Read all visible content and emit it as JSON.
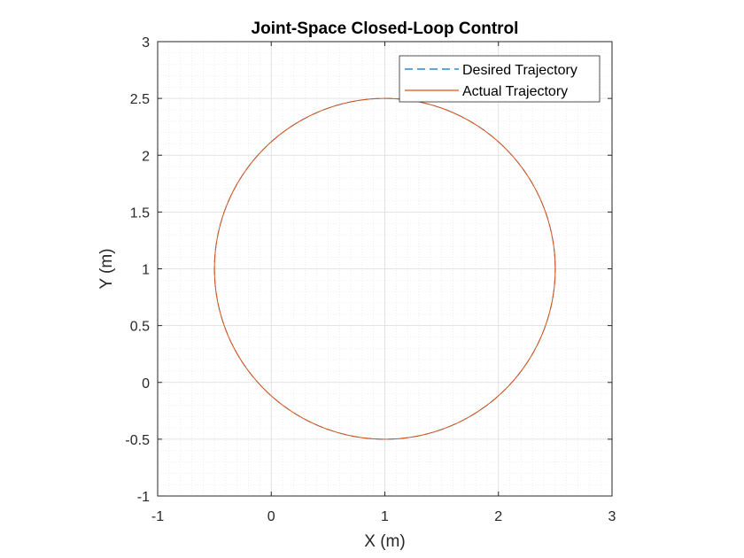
{
  "chart_data": {
    "type": "line",
    "title": "Joint-Space Closed-Loop Control",
    "xlabel": "X (m)",
    "ylabel": "Y (m)",
    "xlim": [
      -1,
      3
    ],
    "ylim": [
      -1,
      3
    ],
    "xticks": [
      "-1",
      "0",
      "1",
      "2",
      "3"
    ],
    "yticks": [
      "-1",
      "-0.5",
      "0",
      "0.5",
      "1",
      "1.5",
      "2",
      "2.5",
      "3"
    ],
    "grid": true,
    "minor_grid": true,
    "legend_position": "top-right",
    "series": [
      {
        "name": "Desired Trajectory",
        "style": "dashed",
        "color": "#0072BD",
        "shape": "circle",
        "center": [
          1,
          1
        ],
        "radius": 1.5
      },
      {
        "name": "Actual Trajectory",
        "style": "solid",
        "color": "#D95319",
        "shape": "circle",
        "center": [
          1,
          1
        ],
        "radius": 1.5,
        "start_point": [
          2.46,
          1.33
        ]
      }
    ]
  }
}
